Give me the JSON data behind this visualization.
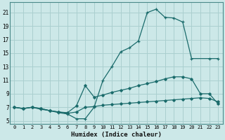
{
  "xlabel": "Humidex (Indice chaleur)",
  "ylabel": "",
  "background_color": "#cce8e8",
  "grid_color": "#aacfcf",
  "line_color": "#1a6b6b",
  "xlim": [
    -0.5,
    23.5
  ],
  "ylim": [
    4.5,
    22.5
  ],
  "xticks": [
    0,
    1,
    2,
    3,
    4,
    5,
    6,
    7,
    8,
    9,
    10,
    11,
    12,
    13,
    14,
    15,
    16,
    17,
    18,
    19,
    20,
    21,
    22,
    23
  ],
  "yticks": [
    5,
    7,
    9,
    11,
    13,
    15,
    17,
    19,
    21
  ],
  "line1_x": [
    0,
    1,
    2,
    3,
    4,
    5,
    6,
    7,
    8,
    9,
    10,
    11,
    12,
    13,
    14,
    15,
    16,
    17,
    18,
    19,
    20,
    22,
    23
  ],
  "line1_y": [
    7.0,
    6.8,
    7.0,
    6.7,
    6.5,
    6.2,
    6.0,
    5.3,
    5.3,
    7.0,
    11.0,
    13.0,
    15.2,
    15.8,
    16.8,
    21.0,
    21.5,
    20.3,
    20.2,
    19.6,
    14.2,
    14.2,
    14.2
  ],
  "line2_x": [
    0,
    1,
    2,
    3,
    4,
    5,
    6,
    7,
    8,
    9,
    10,
    11,
    12,
    13,
    14,
    15,
    16,
    17,
    18,
    19,
    20,
    21,
    22,
    23
  ],
  "line2_y": [
    7.0,
    6.8,
    7.0,
    6.8,
    6.5,
    6.3,
    6.2,
    7.2,
    10.2,
    8.5,
    8.8,
    9.2,
    9.5,
    9.8,
    10.2,
    10.5,
    10.8,
    11.2,
    11.5,
    11.5,
    11.2,
    9.0,
    9.0,
    7.5
  ],
  "line3_x": [
    0,
    1,
    2,
    3,
    4,
    5,
    6,
    7,
    8,
    9,
    10,
    11,
    12,
    13,
    14,
    15,
    16,
    17,
    18,
    19,
    20,
    21,
    22,
    23
  ],
  "line3_y": [
    7.0,
    6.8,
    7.0,
    6.8,
    6.5,
    6.3,
    6.1,
    6.3,
    7.0,
    7.1,
    7.3,
    7.4,
    7.5,
    7.6,
    7.7,
    7.8,
    7.9,
    8.0,
    8.1,
    8.2,
    8.3,
    8.4,
    8.3,
    7.8
  ]
}
